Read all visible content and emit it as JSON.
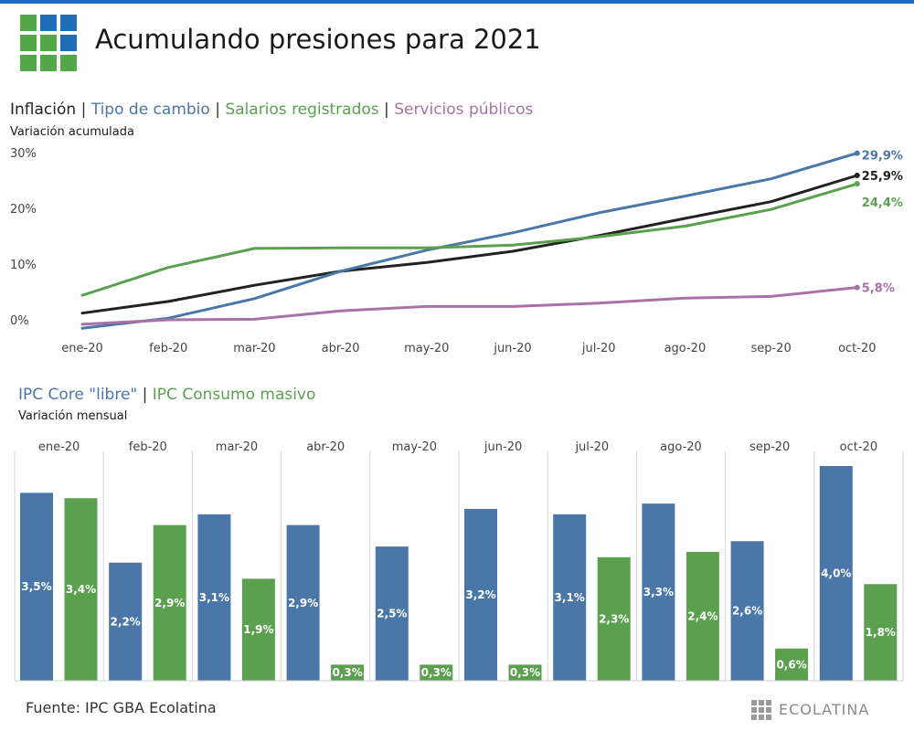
{
  "header": {
    "title": "Acumulando presiones para 2021"
  },
  "colors": {
    "inflacion": "#222222",
    "tipo_cambio": "#4a77a8",
    "salarios": "#5aa04f",
    "servicios": "#a872a8",
    "core": "#4a77a8",
    "consumo": "#5aa04f",
    "logo_blue": "#1f6db5",
    "logo_green": "#55a84a"
  },
  "chart1": {
    "title_parts": [
      "Inflación",
      "Tipo de cambio",
      "Salarios registrados",
      "Servicios públicos"
    ],
    "separator": "|",
    "subtitle": "Variación acumulada"
  },
  "chart2": {
    "title_parts": [
      "IPC Core \"libre\"",
      "IPC Consumo masivo"
    ],
    "separator": "|",
    "subtitle": "Variación mensual"
  },
  "footer": {
    "source": "Fuente: IPC GBA Ecolatina",
    "brand": "ECOLATINA"
  },
  "chart_data": [
    {
      "type": "line",
      "title": "Inflación | Tipo de cambio | Salarios registrados | Servicios públicos",
      "subtitle": "Variación acumulada",
      "categories": [
        "ene-20",
        "feb-20",
        "mar-20",
        "abr-20",
        "may-20",
        "jun-20",
        "jul-20",
        "ago-20",
        "sep-20",
        "oct-20"
      ],
      "y_ticks": [
        "0%",
        "10%",
        "20%",
        "30%"
      ],
      "ylim": [
        0,
        30
      ],
      "series": [
        {
          "name": "Inflación",
          "key": "inflacion",
          "values": [
            1.2,
            3.3,
            6.2,
            8.7,
            10.3,
            12.3,
            15.1,
            18.2,
            21.2,
            25.9
          ],
          "end_label": "25,9%"
        },
        {
          "name": "Tipo de cambio",
          "key": "tipo_cambio",
          "values": [
            -1.5,
            0.3,
            3.8,
            8.7,
            12.5,
            15.6,
            19.2,
            22.2,
            25.3,
            29.9
          ],
          "end_label": "29,9%"
        },
        {
          "name": "Salarios registrados",
          "key": "salarios",
          "values": [
            4.4,
            9.4,
            12.8,
            12.9,
            12.9,
            13.4,
            14.9,
            16.8,
            19.8,
            24.4
          ],
          "end_label": "24,4%"
        },
        {
          "name": "Servicios públicos",
          "key": "servicios",
          "values": [
            -0.8,
            0.0,
            0.1,
            1.6,
            2.4,
            2.4,
            3.0,
            3.9,
            4.2,
            5.8
          ],
          "end_label": "5,8%"
        }
      ]
    },
    {
      "type": "bar",
      "title": "IPC Core \"libre\" | IPC Consumo masivo",
      "subtitle": "Variación mensual",
      "categories": [
        "ene-20",
        "feb-20",
        "mar-20",
        "abr-20",
        "may-20",
        "jun-20",
        "jul-20",
        "ago-20",
        "sep-20",
        "oct-20"
      ],
      "series": [
        {
          "name": "IPC Core \"libre\"",
          "key": "core",
          "values": [
            3.5,
            2.2,
            3.1,
            2.9,
            2.5,
            3.2,
            3.1,
            3.3,
            2.6,
            4.0
          ],
          "labels": [
            "3,5%",
            "2,2%",
            "3,1%",
            "2,9%",
            "2,5%",
            "3,2%",
            "3,1%",
            "3,3%",
            "2,6%",
            "4,0%"
          ]
        },
        {
          "name": "IPC Consumo masivo",
          "key": "consumo",
          "values": [
            3.4,
            2.9,
            1.9,
            0.3,
            0.3,
            0.3,
            2.3,
            2.4,
            0.6,
            1.8
          ],
          "labels": [
            "3,4%",
            "2,9%",
            "1,9%",
            "0,3%",
            "0,3%",
            "0,3%",
            "2,3%",
            "2,4%",
            "0,6%",
            "1,8%"
          ]
        }
      ]
    }
  ]
}
